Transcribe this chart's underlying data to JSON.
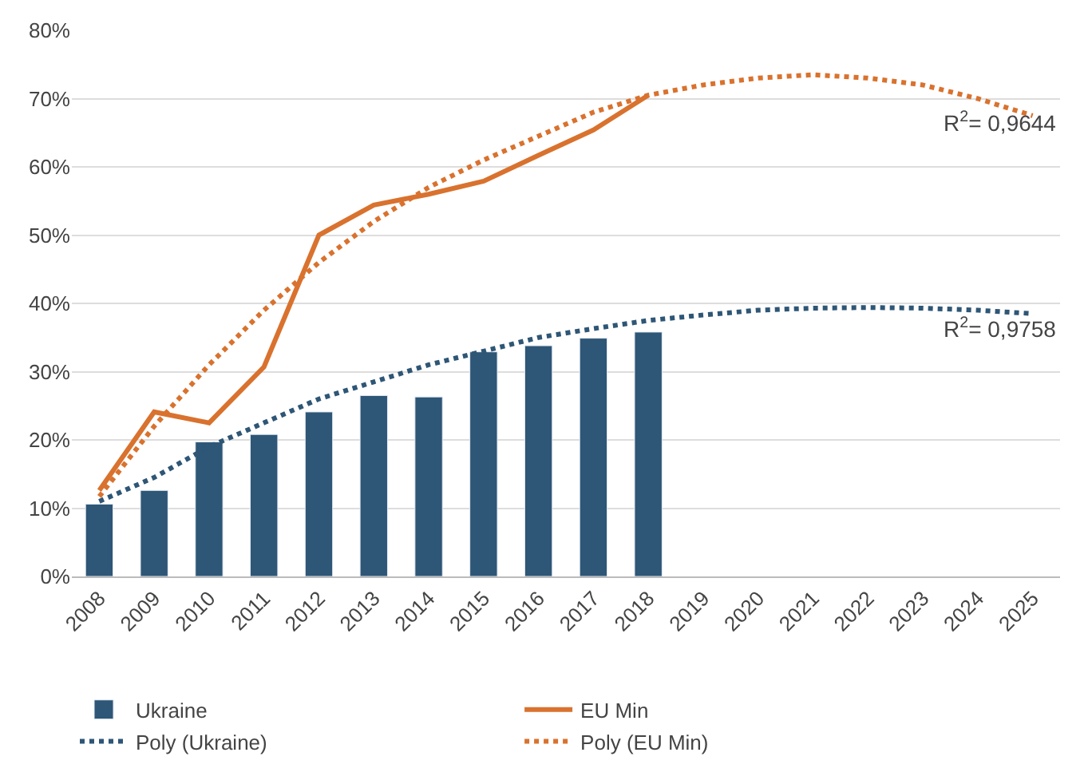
{
  "chart_data": {
    "type": "bar",
    "categories": [
      "2008",
      "2009",
      "2010",
      "2011",
      "2012",
      "2013",
      "2014",
      "2015",
      "2016",
      "2017",
      "2018",
      "2019",
      "2020",
      "2021",
      "2022",
      "2023",
      "2024",
      "2025"
    ],
    "series": [
      {
        "name": "Ukraine",
        "color": "#2e5676",
        "values": [
          10.6,
          12.6,
          19.7,
          20.8,
          24.1,
          26.5,
          26.3,
          32.9,
          33.8,
          34.9,
          35.8,
          null,
          null,
          null,
          null,
          null,
          null,
          null
        ]
      },
      {
        "name": "EU Min",
        "type": "line",
        "color": "#d9722e",
        "line_style": "solid",
        "values": [
          12.6,
          24.1,
          22.5,
          30.7,
          50,
          54.4,
          56,
          57.9,
          61.7,
          65.4,
          70.5,
          null,
          null,
          null,
          null,
          null,
          null,
          null
        ]
      },
      {
        "name": "Poly (Ukraine)",
        "type": "line",
        "color": "#2e5676",
        "line_style": "dotted",
        "values": [
          11,
          14.5,
          19,
          22.5,
          26,
          28.5,
          31,
          33,
          35,
          36.3,
          37.5,
          38.3,
          39,
          39.3,
          39.4,
          39.3,
          39,
          38.5
        ]
      },
      {
        "name": "Poly (EU Min)",
        "type": "line",
        "color": "#d9722e",
        "line_style": "dotted",
        "values": [
          11.7,
          22,
          31,
          39,
          46,
          52,
          57,
          61,
          64.5,
          68,
          70.5,
          72,
          73,
          73.5,
          73,
          72,
          70,
          67.5
        ]
      }
    ],
    "ylim": [
      0,
      80
    ],
    "yticks": [
      {
        "value": 0,
        "label": "0%"
      },
      {
        "value": 10,
        "label": "10%"
      },
      {
        "value": 20,
        "label": "20%"
      },
      {
        "value": 30,
        "label": "30%"
      },
      {
        "value": 40,
        "label": "40%"
      },
      {
        "value": 50,
        "label": "50%"
      },
      {
        "value": 60,
        "label": "60%"
      },
      {
        "value": 70,
        "label": "70%"
      },
      {
        "value": 80,
        "label": "80%"
      }
    ],
    "grid": "y",
    "legend": "bottom",
    "marker": "none",
    "annotations": [
      "R$^{2}$= 0,9644",
      "R$^{2}$= 0,9758"
    ]
  }
}
